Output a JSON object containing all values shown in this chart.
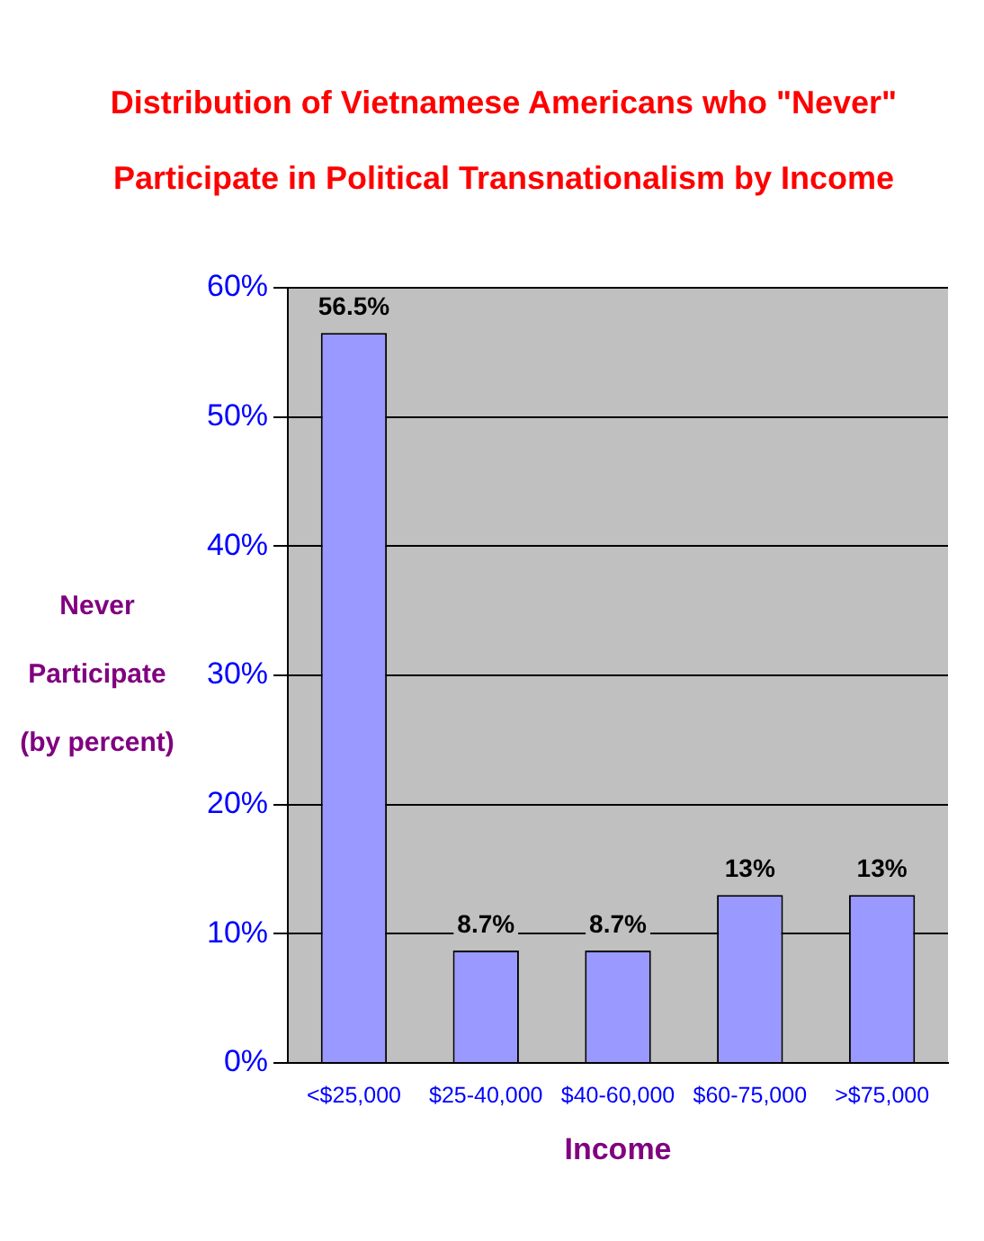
{
  "chart_data": {
    "type": "bar",
    "title": "Distribution of Vietnamese Americans who \"Never\" Participate in Political Transnationalism by Income",
    "xlabel": "Income",
    "ylabel": "Never Participate (by percent)",
    "categories": [
      "<$25,000",
      "$25-40,000",
      "$40-60,000",
      "$60-75,000",
      ">$75,000"
    ],
    "values": [
      56.5,
      8.7,
      8.7,
      13,
      13
    ],
    "color": "#9999ff",
    "value_labels": [
      "56.5%",
      "8.7%",
      "8.7%",
      "13%",
      "13%"
    ],
    "ylim": [
      0,
      60
    ],
    "yticks": [
      {
        "value": 0,
        "label": "0%"
      },
      {
        "value": 10,
        "label": "10%"
      },
      {
        "value": 20,
        "label": "20%"
      },
      {
        "value": 30,
        "label": "30%"
      },
      {
        "value": 40,
        "label": "40%"
      },
      {
        "value": 50,
        "label": "50%"
      },
      {
        "value": 60,
        "label": "60%"
      }
    ],
    "grid": "y",
    "legend": false
  }
}
